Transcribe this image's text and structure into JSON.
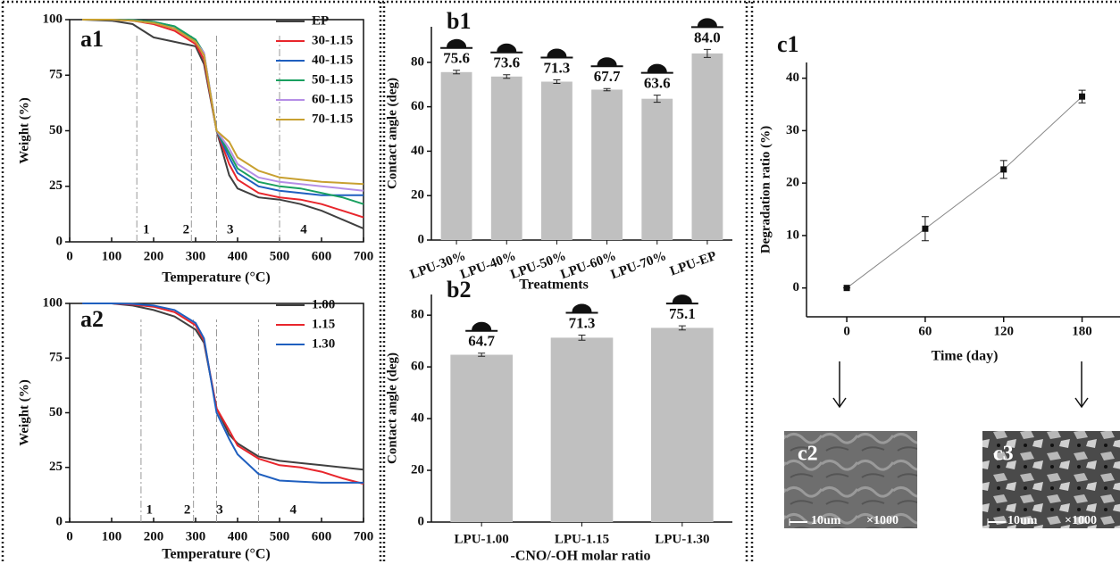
{
  "chart_data": [
    {
      "type": "line",
      "title": "a1",
      "xlabel": "Temperature (°C)",
      "ylabel": "Weight (%)",
      "x": [
        30,
        100,
        150,
        200,
        250,
        300,
        320,
        350,
        380,
        400,
        450,
        500,
        550,
        600,
        650,
        700
      ],
      "series": [
        {
          "name": "EP",
          "color": "#404040",
          "values": [
            100,
            99.5,
            98,
            92,
            90,
            88,
            80,
            50,
            30,
            24,
            20,
            19,
            17,
            14,
            10,
            6
          ]
        },
        {
          "name": "30-1.15",
          "color": "#e8262c",
          "values": [
            100,
            100,
            99.5,
            98,
            95,
            89,
            82,
            50,
            35,
            28,
            22,
            20,
            19,
            17,
            14,
            11
          ]
        },
        {
          "name": "40-1.15",
          "color": "#1f5fbf",
          "values": [
            100,
            100,
            99.8,
            99,
            97,
            90,
            84,
            50,
            38,
            31,
            25,
            23,
            22,
            21,
            21,
            21
          ]
        },
        {
          "name": "50-1.15",
          "color": "#1aa060",
          "values": [
            100,
            100,
            99.8,
            99,
            97,
            91,
            85,
            50,
            40,
            33,
            27,
            25,
            24,
            22,
            20,
            17
          ]
        },
        {
          "name": "60-1.15",
          "color": "#b58ee6",
          "values": [
            100,
            100,
            99.5,
            98.5,
            96,
            90,
            85,
            50,
            42,
            35,
            29,
            27,
            26,
            25,
            24,
            23
          ]
        },
        {
          "name": "70-1.15",
          "color": "#c8a030",
          "values": [
            100,
            100,
            99.5,
            98.5,
            96,
            90,
            84,
            50,
            45,
            38,
            32,
            29,
            28,
            27,
            26.5,
            26
          ]
        }
      ],
      "xlim": [
        0,
        700
      ],
      "xticks": [
        0,
        100,
        200,
        300,
        400,
        500,
        600,
        700
      ],
      "ylim": [
        0,
        100
      ],
      "yticks": [
        0,
        25,
        50,
        75,
        100
      ],
      "vlines": [
        160,
        290,
        350,
        500
      ],
      "regions": [
        "1",
        "2",
        "3",
        "4"
      ],
      "legend": "upper right"
    },
    {
      "type": "line",
      "title": "a2",
      "xlabel": "Temperature (°C)",
      "ylabel": "Weight (%)",
      "x": [
        30,
        100,
        150,
        200,
        250,
        300,
        320,
        350,
        380,
        400,
        450,
        500,
        550,
        600,
        650,
        700
      ],
      "series": [
        {
          "name": "1.00",
          "color": "#404040",
          "values": [
            100,
            100,
            99,
            97,
            94,
            88,
            82,
            52,
            40,
            36,
            30,
            28,
            27,
            26,
            25,
            24
          ]
        },
        {
          "name": "1.15",
          "color": "#e8262c",
          "values": [
            100,
            100,
            99.5,
            98.5,
            96,
            90,
            83,
            52,
            42,
            35,
            29,
            26,
            25,
            23,
            20,
            17.5
          ]
        },
        {
          "name": "1.30",
          "color": "#1f5fbf",
          "values": [
            100,
            100,
            99.8,
            99,
            97,
            91,
            84,
            50,
            38,
            31,
            22,
            19,
            18.5,
            18,
            18,
            18
          ]
        }
      ],
      "xlim": [
        0,
        700
      ],
      "xticks": [
        0,
        100,
        200,
        300,
        400,
        500,
        600,
        700
      ],
      "ylim": [
        0,
        100
      ],
      "yticks": [
        0,
        25,
        50,
        75,
        100
      ],
      "vlines": [
        170,
        295,
        350,
        450
      ],
      "regions": [
        "1",
        "2",
        "3",
        "4"
      ],
      "legend": "upper right"
    },
    {
      "type": "bar",
      "title": "b1",
      "xlabel": "Treatments",
      "ylabel": "Contact angle (deg)",
      "color": "#c0c0c0",
      "categories": [
        "LPU-30%",
        "LPU-40%",
        "LPU-50%",
        "LPU-60%",
        "LPU-70%",
        "LPU-EP"
      ],
      "values": [
        75.6,
        73.6,
        71.3,
        67.7,
        63.6,
        84.0
      ],
      "value_labels": [
        "75.6",
        "73.6",
        "71.3",
        "67.7",
        "63.6",
        "84.0"
      ],
      "errors": [
        0.8,
        0.8,
        0.8,
        0.5,
        1.6,
        1.8
      ],
      "ylim": [
        0,
        96
      ],
      "yticks": [
        0,
        20,
        40,
        60,
        80
      ]
    },
    {
      "type": "bar",
      "title": "b2",
      "xlabel": "-CNO/-OH molar ratio",
      "ylabel": "Contact angle (deg)",
      "color": "#c0c0c0",
      "categories": [
        "LPU-1.00",
        "LPU-1.15",
        "LPU-1.30"
      ],
      "values": [
        64.7,
        71.3,
        75.1
      ],
      "value_labels": [
        "64.7",
        "71.3",
        "75.1"
      ],
      "errors": [
        0.6,
        1.0,
        0.8
      ],
      "ylim": [
        0,
        88
      ],
      "yticks": [
        0,
        20,
        40,
        60,
        80
      ]
    },
    {
      "type": "line",
      "title": "c1",
      "xlabel": "Time  (day)",
      "ylabel": "Degradation ratio (%)",
      "x": [
        0,
        60,
        120,
        180
      ],
      "series": [
        {
          "name": null,
          "color": "#888888",
          "marker": "square",
          "values": [
            0,
            11.3,
            22.6,
            36.5
          ],
          "errors": [
            0,
            2.3,
            1.7,
            1.2
          ]
        }
      ],
      "xlim": [
        -30.8,
        209
      ],
      "xticks": [
        0,
        60,
        120,
        180
      ],
      "ylim": [
        -5.5,
        43
      ],
      "yticks": [
        0,
        10,
        20,
        30,
        40
      ]
    }
  ],
  "images": [
    {
      "label": "c2",
      "scale": "10um",
      "magnification": "×1000"
    },
    {
      "label": "c3",
      "scale": "10um",
      "magnification": "×1000"
    }
  ]
}
